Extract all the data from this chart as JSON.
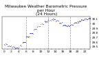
{
  "title": "Milwaukee Weather Barometric Pressure\nper Hour\n(24 Hours)",
  "title_fontsize": 4.2,
  "bg_color": "#ffffff",
  "dot_color": "#0000dd",
  "dot_size": 0.8,
  "grid_color": "#999999",
  "xlabel_fontsize": 3.2,
  "ylabel_fontsize": 3.0,
  "ylim": [
    29.45,
    30.15
  ],
  "ytick_vals": [
    29.5,
    29.6,
    29.7,
    29.8,
    29.9,
    30.0,
    30.1
  ],
  "ytick_labels": [
    "29.5",
    "29.6",
    "29.7",
    "29.8",
    "29.9",
    "30",
    "30.1"
  ],
  "vlines": [
    6,
    12,
    18
  ],
  "seed": 10,
  "hours": [
    0,
    1,
    2,
    3,
    4,
    5,
    6,
    7,
    8,
    9,
    10,
    11,
    12,
    13,
    14,
    15,
    16,
    17,
    18,
    19,
    20,
    21,
    22,
    23
  ],
  "pressure": [
    29.56,
    29.52,
    29.5,
    29.48,
    29.52,
    29.6,
    29.72,
    29.8,
    29.88,
    29.95,
    30.0,
    30.05,
    30.08,
    30.1,
    30.07,
    30.02,
    29.97,
    29.96,
    29.98,
    30.02,
    30.05,
    30.08,
    30.1,
    30.12
  ],
  "x_tick_labels": [
    "0",
    "",
    "2",
    "",
    "4",
    "",
    "6",
    "",
    "8",
    "",
    "10",
    "",
    "12",
    "",
    "14",
    "",
    "16",
    "",
    "18",
    "",
    "20",
    "",
    "22",
    ""
  ]
}
